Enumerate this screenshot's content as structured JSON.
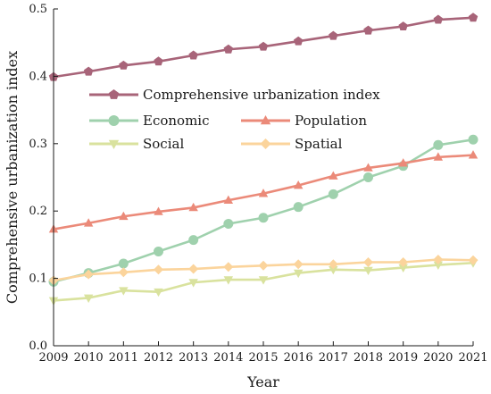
{
  "chart_data": {
    "type": "line",
    "xlabel": "Year",
    "ylabel": "Comprehensive urbanization index",
    "x": [
      "2009",
      "2010",
      "2011",
      "2012",
      "2013",
      "2014",
      "2015",
      "2016",
      "2017",
      "2018",
      "2019",
      "2020",
      "2021"
    ],
    "ylim": [
      0,
      0.5
    ],
    "yticks": [
      "0.0",
      "0.1",
      "0.2",
      "0.3",
      "0.4",
      "0.5"
    ],
    "grid": false,
    "legend_position": "top-left",
    "series": [
      {
        "name": "Comprehensive urbanization index",
        "color": "#a86479",
        "marker": "pentagon",
        "values": [
          0.399,
          0.407,
          0.416,
          0.422,
          0.431,
          0.44,
          0.444,
          0.452,
          0.46,
          0.468,
          0.474,
          0.484,
          0.487
        ]
      },
      {
        "name": "Economic",
        "color": "#9fd1ad",
        "marker": "circle",
        "values": [
          0.095,
          0.108,
          0.122,
          0.14,
          0.157,
          0.181,
          0.19,
          0.206,
          0.225,
          0.25,
          0.267,
          0.298,
          0.306
        ]
      },
      {
        "name": "Population",
        "color": "#eb8a79",
        "marker": "triangle-up",
        "values": [
          0.173,
          0.182,
          0.192,
          0.199,
          0.205,
          0.216,
          0.226,
          0.238,
          0.252,
          0.264,
          0.271,
          0.28,
          0.283
        ]
      },
      {
        "name": "Social",
        "color": "#d9e29e",
        "marker": "triangle-down",
        "values": [
          0.067,
          0.071,
          0.082,
          0.08,
          0.094,
          0.098,
          0.098,
          0.108,
          0.113,
          0.112,
          0.116,
          0.12,
          0.123
        ]
      },
      {
        "name": "Spatial",
        "color": "#fbd49c",
        "marker": "diamond",
        "values": [
          0.097,
          0.106,
          0.109,
          0.113,
          0.114,
          0.117,
          0.119,
          0.121,
          0.121,
          0.124,
          0.124,
          0.128,
          0.127
        ]
      }
    ]
  }
}
